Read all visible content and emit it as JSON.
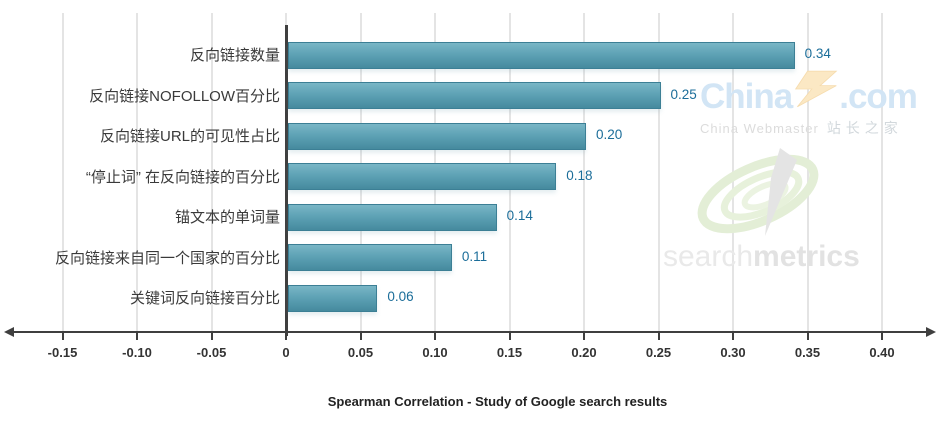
{
  "chart_data": {
    "type": "bar",
    "orientation": "horizontal",
    "title": "Spearman Correlation - Study of Google search results",
    "categories": [
      "反向链接数量",
      "反向链接NOFOLLOW百分比",
      "反向链接URL的可见性占比",
      "“停止词” 在反向链接的百分比",
      "锚文本的单词量",
      "反向链接来自同一个国家的百分比",
      "关键词反向链接百分比"
    ],
    "values": [
      0.34,
      0.25,
      0.2,
      0.18,
      0.14,
      0.11,
      0.06
    ],
    "value_labels": [
      "0.34",
      "0.25",
      "0.20",
      "0.18",
      "0.14",
      "0.11",
      "0.06"
    ],
    "xlim": [
      -0.175,
      0.44
    ],
    "xticks": [
      {
        "v": -0.15,
        "label": "-0.15"
      },
      {
        "v": -0.1,
        "label": "-0.10"
      },
      {
        "v": -0.05,
        "label": "-0.05"
      },
      {
        "v": 0,
        "label": "0"
      },
      {
        "v": 0.05,
        "label": "0.05"
      },
      {
        "v": 0.1,
        "label": "0.10"
      },
      {
        "v": 0.15,
        "label": "0.15"
      },
      {
        "v": 0.2,
        "label": "0.20"
      },
      {
        "v": 0.25,
        "label": "0.25"
      },
      {
        "v": 0.3,
        "label": "0.30"
      },
      {
        "v": 0.35,
        "label": "0.35"
      },
      {
        "v": 0.4,
        "label": "0.40"
      }
    ],
    "grid": "vertical",
    "legend": "none",
    "bar_color": "#5ea2b5",
    "bar_border_color": "#3c7f95",
    "value_label_color": "#1b6d99",
    "axis_color": "#3f3f3f"
  },
  "watermarks": {
    "chinaz": {
      "brand_prefix": "China",
      "brand_suffix": ".com",
      "subtitle_en": "China Webmaster",
      "subtitle_cn": "站长之家"
    },
    "searchmetrics": {
      "part1": "search",
      "part2": "metrics"
    }
  }
}
